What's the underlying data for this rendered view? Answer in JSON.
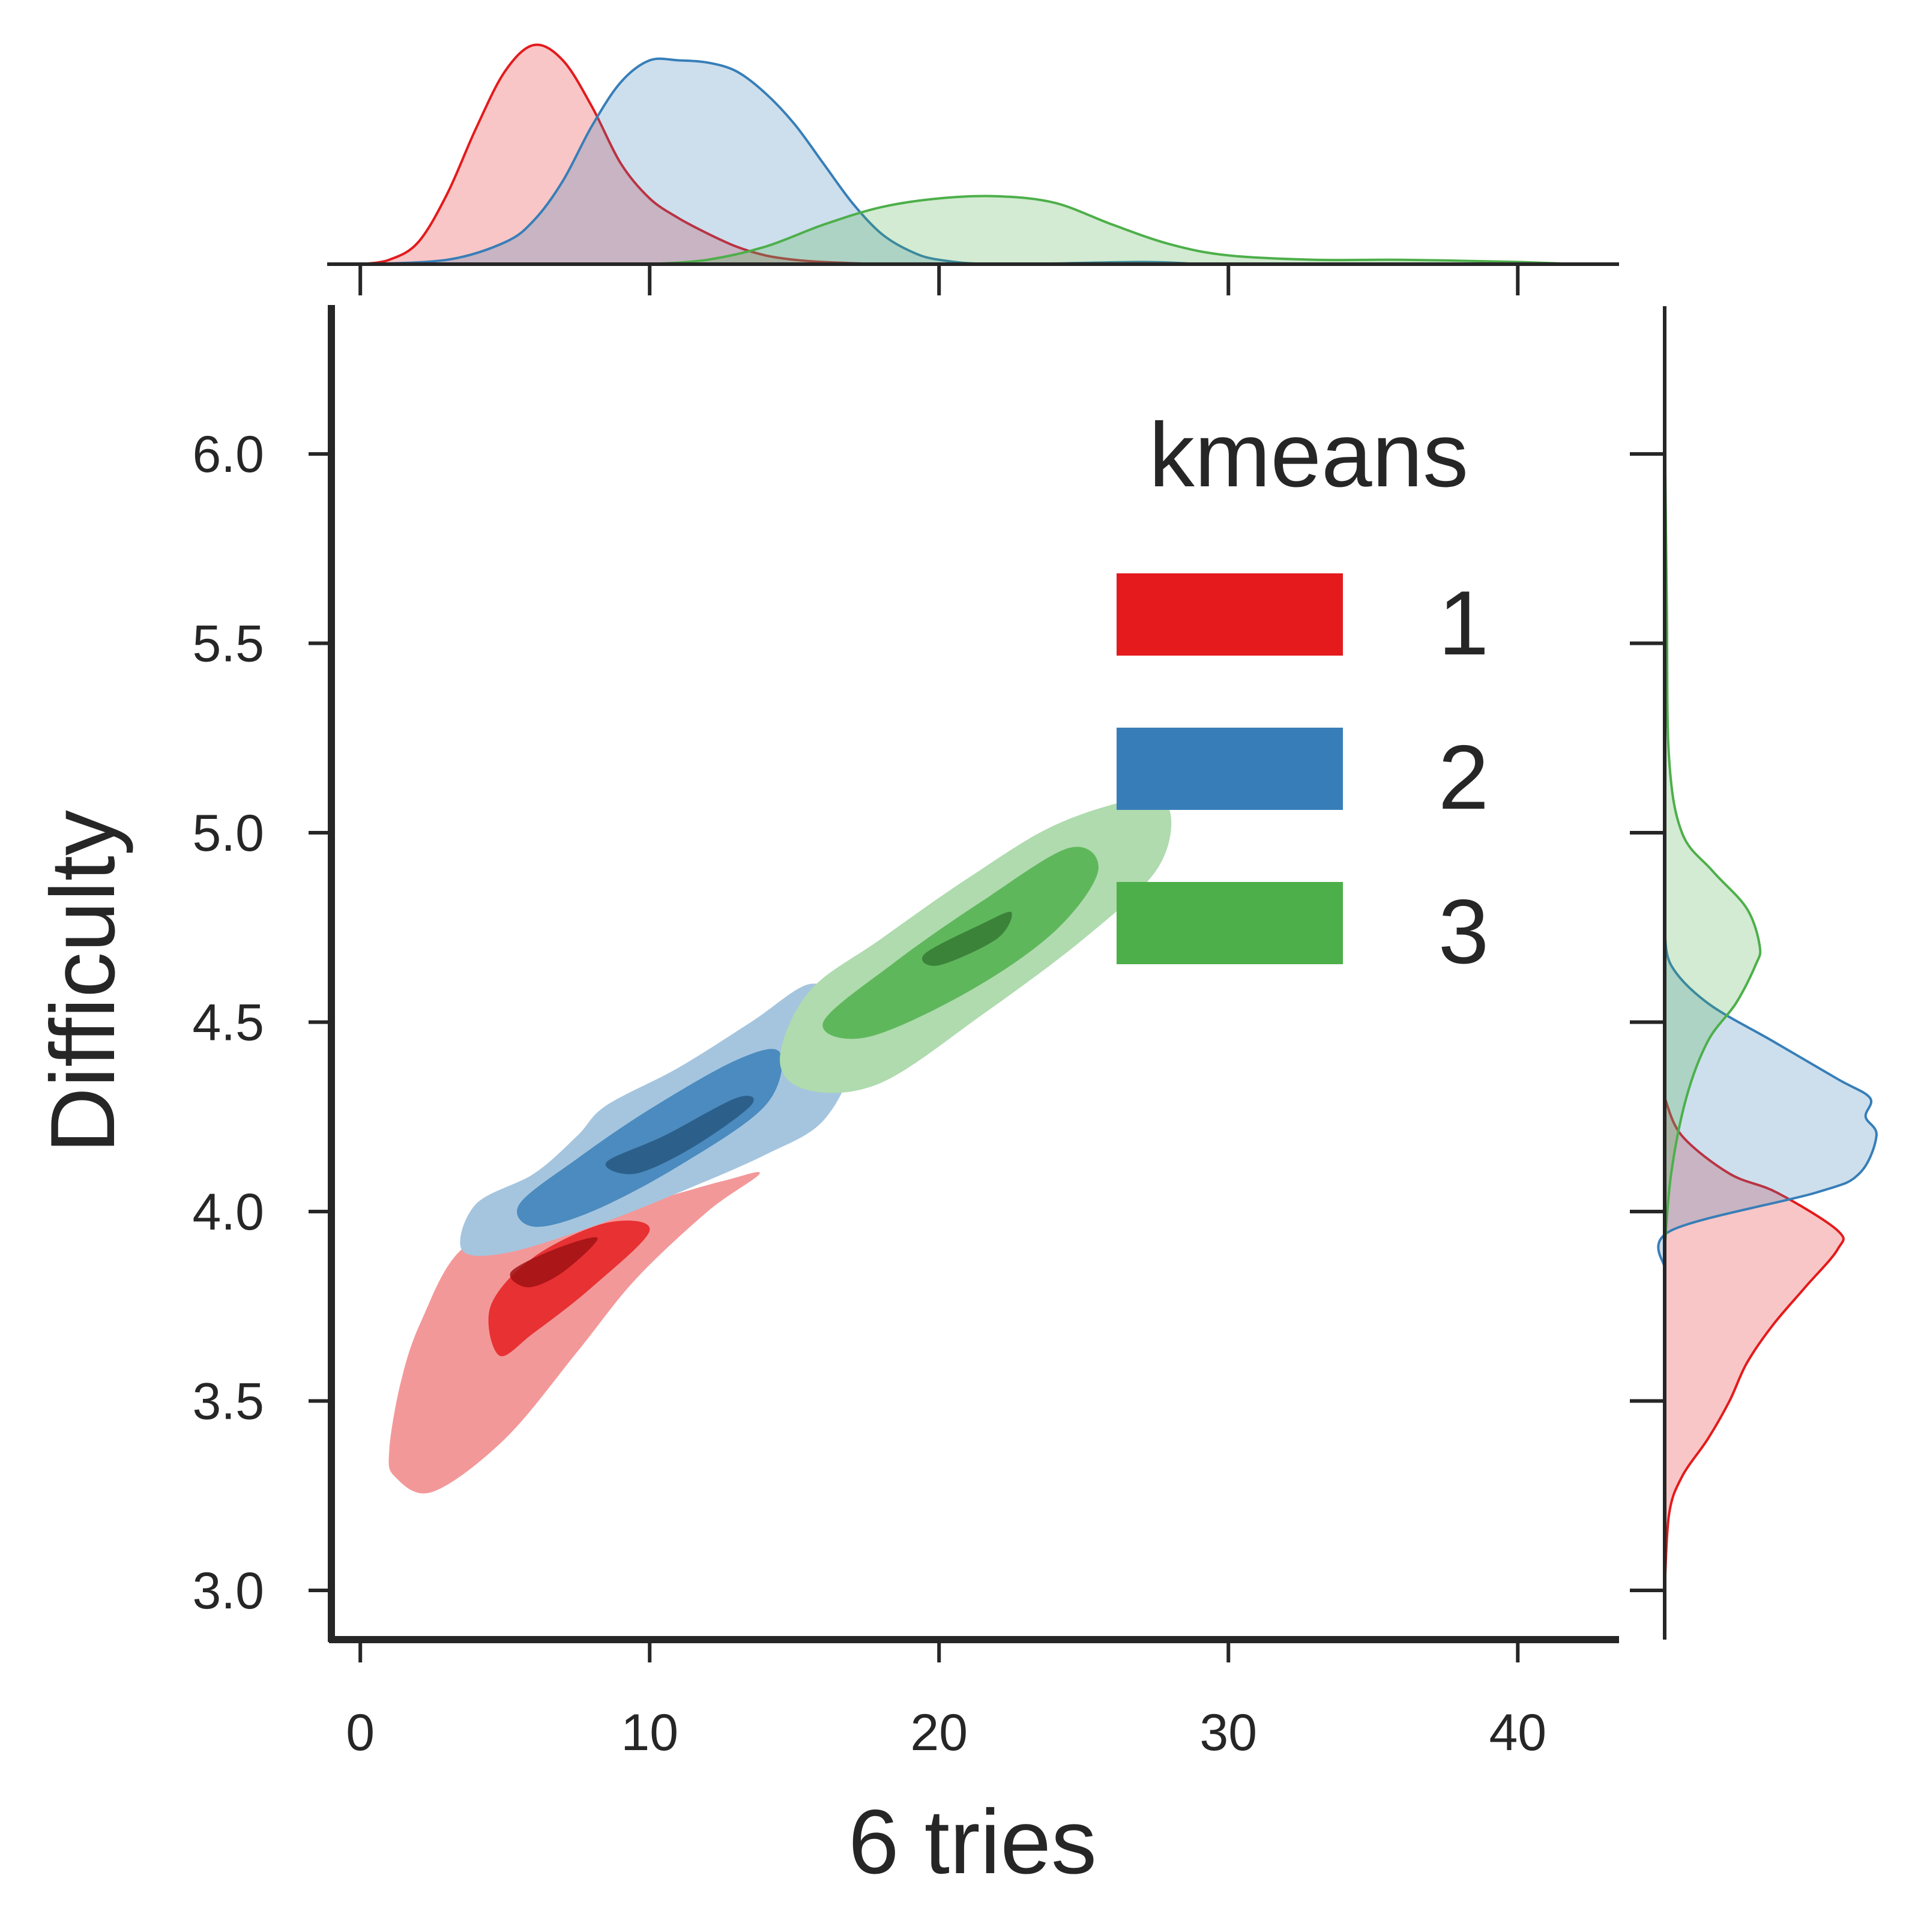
{
  "chart_data": {
    "type": "jointplot-kde",
    "xlabel": "6 tries",
    "ylabel": "Difficulty",
    "xlim": [
      -1,
      43.5
    ],
    "ylim": [
      2.87,
      6.39
    ],
    "x_ticks": [
      0,
      10,
      20,
      30,
      40
    ],
    "y_ticks": [
      3.0,
      3.5,
      4.0,
      4.5,
      5.0,
      5.5,
      6.0
    ],
    "x_tick_labels": [
      "0",
      "10",
      "20",
      "30",
      "40"
    ],
    "y_tick_labels": [
      "3.0",
      "3.5",
      "4.0",
      "4.5",
      "5.0",
      "5.5",
      "6.0"
    ],
    "grid": false,
    "legend": {
      "title": "kmeans",
      "placement": "top-right",
      "entries": [
        {
          "label": "1",
          "color": "#e41a1c"
        },
        {
          "label": "2",
          "color": "#377eb8"
        },
        {
          "label": "3",
          "color": "#4daf4a"
        }
      ]
    },
    "series": [
      {
        "name": "1",
        "color": "#e41a1c",
        "joint_center": {
          "x": 6.5,
          "y": 3.85
        },
        "joint_outer": [
          [
            1,
            3.37
          ],
          [
            1.4,
            3.55
          ],
          [
            2.1,
            3.71
          ],
          [
            3.5,
            3.9
          ],
          [
            6,
            3.98
          ],
          [
            9.5,
            4.02
          ],
          [
            12.5,
            4.08
          ],
          [
            13.8,
            4.1
          ],
          [
            12,
            4.0
          ],
          [
            9.5,
            3.82
          ],
          [
            7.5,
            3.63
          ],
          [
            5,
            3.4
          ],
          [
            2.5,
            3.26
          ],
          [
            1.2,
            3.3
          ]
        ],
        "joint_inner": [
          [
            4.5,
            3.75
          ],
          [
            6,
            3.88
          ],
          [
            8.5,
            3.97
          ],
          [
            10,
            3.95
          ],
          [
            8,
            3.8
          ],
          [
            6,
            3.68
          ],
          [
            4.8,
            3.62
          ]
        ],
        "joint_core": [
          [
            5.2,
            3.84
          ],
          [
            6.7,
            3.9
          ],
          [
            8.2,
            3.93
          ],
          [
            7,
            3.84
          ],
          [
            5.8,
            3.8
          ]
        ],
        "marginal_x": [
          [
            0,
            0
          ],
          [
            1,
            0.02
          ],
          [
            2,
            0.1
          ],
          [
            3,
            0.32
          ],
          [
            4,
            0.62
          ],
          [
            5,
            0.88
          ],
          [
            6,
            1.0
          ],
          [
            7,
            0.93
          ],
          [
            8,
            0.72
          ],
          [
            9,
            0.46
          ],
          [
            10,
            0.3
          ],
          [
            11,
            0.21
          ],
          [
            12,
            0.14
          ],
          [
            13,
            0.08
          ],
          [
            14,
            0.04
          ],
          [
            15,
            0.02
          ],
          [
            16,
            0.01
          ],
          [
            18,
            0
          ]
        ],
        "marginal_y": [
          [
            3.0,
            0
          ],
          [
            3.2,
            0.02
          ],
          [
            3.3,
            0.08
          ],
          [
            3.4,
            0.2
          ],
          [
            3.5,
            0.3
          ],
          [
            3.6,
            0.38
          ],
          [
            3.7,
            0.5
          ],
          [
            3.8,
            0.65
          ],
          [
            3.9,
            0.8
          ],
          [
            3.95,
            0.8
          ],
          [
            4.05,
            0.52
          ],
          [
            4.1,
            0.3
          ],
          [
            4.2,
            0.08
          ],
          [
            4.3,
            0
          ]
        ]
      },
      {
        "name": "2",
        "color": "#377eb8",
        "joint_center": {
          "x": 11,
          "y": 4.2
        },
        "joint_outer": [
          [
            3.5,
            3.9
          ],
          [
            4,
            4.02
          ],
          [
            6,
            4.1
          ],
          [
            7.5,
            4.2
          ],
          [
            8.5,
            4.28
          ],
          [
            11,
            4.38
          ],
          [
            13.5,
            4.5
          ],
          [
            15.5,
            4.6
          ],
          [
            16.5,
            4.55
          ],
          [
            17,
            4.4
          ],
          [
            16,
            4.24
          ],
          [
            14,
            4.15
          ],
          [
            11,
            4.05
          ],
          [
            8,
            3.96
          ],
          [
            5,
            3.89
          ]
        ],
        "joint_inner": [
          [
            5.5,
            4.02
          ],
          [
            7.5,
            4.14
          ],
          [
            10,
            4.27
          ],
          [
            13,
            4.4
          ],
          [
            14.5,
            4.42
          ],
          [
            14,
            4.28
          ],
          [
            11,
            4.12
          ],
          [
            8,
            4.0
          ],
          [
            6,
            3.96
          ]
        ],
        "joint_core": [
          [
            8.5,
            4.13
          ],
          [
            10.5,
            4.2
          ],
          [
            13,
            4.3
          ],
          [
            13.5,
            4.28
          ],
          [
            11.5,
            4.17
          ],
          [
            9.5,
            4.1
          ]
        ],
        "marginal_x": [
          [
            0,
            0
          ],
          [
            3,
            0.02
          ],
          [
            5,
            0.1
          ],
          [
            6,
            0.2
          ],
          [
            7,
            0.38
          ],
          [
            8,
            0.63
          ],
          [
            9,
            0.83
          ],
          [
            10,
            0.93
          ],
          [
            11,
            0.93
          ],
          [
            12,
            0.92
          ],
          [
            13,
            0.88
          ],
          [
            14,
            0.78
          ],
          [
            15,
            0.64
          ],
          [
            16,
            0.46
          ],
          [
            17,
            0.28
          ],
          [
            18,
            0.14
          ],
          [
            19,
            0.06
          ],
          [
            20,
            0.02
          ],
          [
            22,
            0
          ],
          [
            27,
            0.01
          ],
          [
            29,
            0
          ]
        ],
        "marginal_y": [
          [
            3.85,
            0
          ],
          [
            3.95,
            0.03
          ],
          [
            4.05,
            0.7
          ],
          [
            4.1,
            0.9
          ],
          [
            4.2,
            0.98
          ],
          [
            4.25,
            0.93
          ],
          [
            4.3,
            0.95
          ],
          [
            4.35,
            0.8
          ],
          [
            4.45,
            0.5
          ],
          [
            4.55,
            0.2
          ],
          [
            4.65,
            0.03
          ],
          [
            4.75,
            0
          ]
        ]
      },
      {
        "name": "3",
        "color": "#4daf4a",
        "joint_center": {
          "x": 20.5,
          "y": 4.7
        },
        "joint_outer": [
          [
            14.5,
            4.4
          ],
          [
            15.5,
            4.58
          ],
          [
            18,
            4.72
          ],
          [
            21,
            4.88
          ],
          [
            24,
            5.02
          ],
          [
            27,
            5.09
          ],
          [
            28,
            5.05
          ],
          [
            27.5,
            4.9
          ],
          [
            25,
            4.72
          ],
          [
            21.5,
            4.52
          ],
          [
            18,
            4.34
          ],
          [
            15.5,
            4.32
          ]
        ],
        "joint_inner": [
          [
            16,
            4.5
          ],
          [
            18.5,
            4.66
          ],
          [
            21.5,
            4.82
          ],
          [
            24.5,
            4.96
          ],
          [
            25.5,
            4.9
          ],
          [
            24,
            4.74
          ],
          [
            21,
            4.58
          ],
          [
            17.5,
            4.46
          ]
        ],
        "joint_core": [
          [
            19.5,
            4.68
          ],
          [
            21.5,
            4.76
          ],
          [
            22.5,
            4.79
          ],
          [
            22,
            4.72
          ],
          [
            20,
            4.65
          ]
        ],
        "marginal_x": [
          [
            10,
            0
          ],
          [
            12,
            0.02
          ],
          [
            14,
            0.08
          ],
          [
            16,
            0.18
          ],
          [
            18,
            0.26
          ],
          [
            20,
            0.3
          ],
          [
            22,
            0.31
          ],
          [
            24,
            0.28
          ],
          [
            26,
            0.18
          ],
          [
            28,
            0.09
          ],
          [
            30,
            0.04
          ],
          [
            33,
            0.02
          ],
          [
            36,
            0.02
          ],
          [
            40,
            0.01
          ],
          [
            42,
            0
          ]
        ],
        "marginal_y": [
          [
            3.9,
            0
          ],
          [
            4.1,
            0.03
          ],
          [
            4.3,
            0.1
          ],
          [
            4.45,
            0.2
          ],
          [
            4.55,
            0.33
          ],
          [
            4.65,
            0.42
          ],
          [
            4.7,
            0.44
          ],
          [
            4.8,
            0.38
          ],
          [
            4.9,
            0.22
          ],
          [
            5.0,
            0.08
          ],
          [
            5.2,
            0.02
          ],
          [
            5.6,
            0.01
          ],
          [
            6.1,
            0
          ]
        ]
      }
    ]
  }
}
